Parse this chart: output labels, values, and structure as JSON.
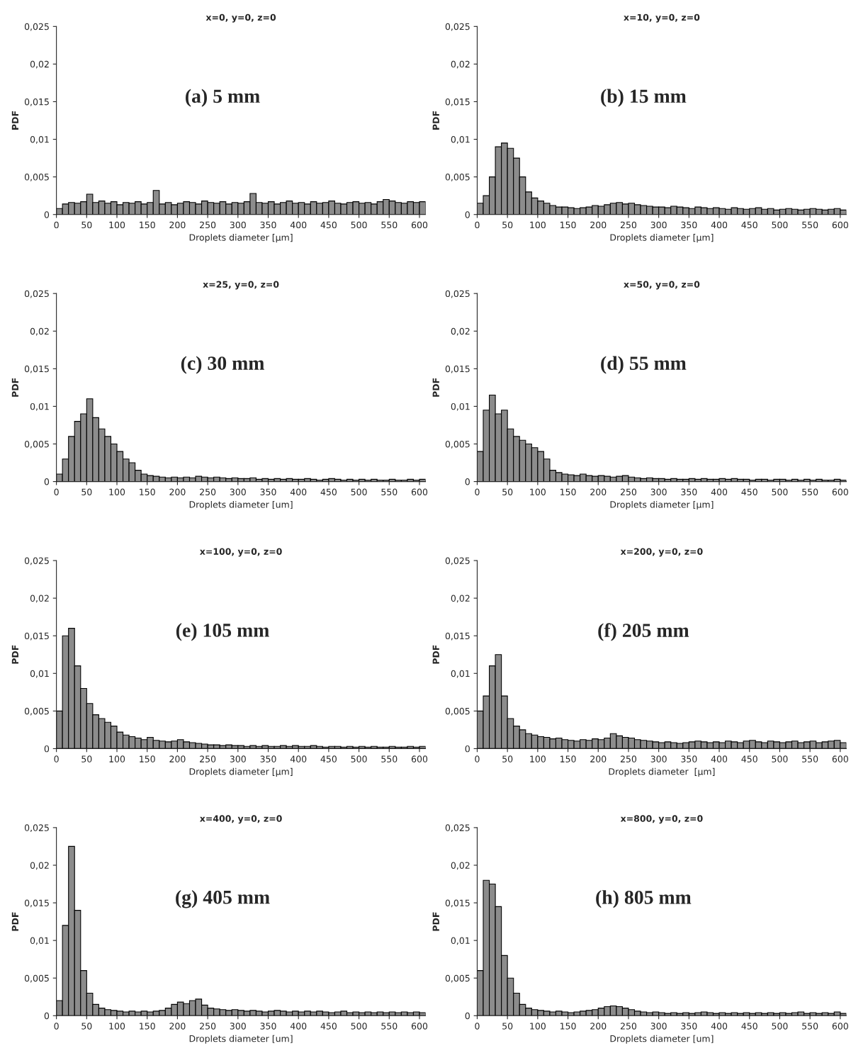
{
  "chart_data": [
    {
      "type": "histogram",
      "title": "x=0, y=0, z=0",
      "xlabel": "Droplets diameter [µm]",
      "ylabel": "PDF",
      "annotations": [
        "(a) 5 mm"
      ],
      "color": "#8c8c8c",
      "xlim": [
        0,
        610
      ],
      "ylim": [
        0,
        0.025
      ],
      "xticks": [
        0,
        50,
        100,
        150,
        200,
        250,
        300,
        350,
        400,
        450,
        500,
        550,
        600
      ],
      "yticks": [
        0,
        {
          "value": 0.005,
          "label": "0,005"
        },
        {
          "value": 0.01,
          "label": "0,01"
        },
        {
          "value": 0.015,
          "label": "0,015"
        },
        {
          "value": 0.02,
          "label": "0,02"
        },
        {
          "value": 0.025,
          "label": "0,025"
        }
      ],
      "bins": [
        0,
        10,
        20,
        30,
        40,
        50,
        60,
        70,
        80,
        90,
        100,
        110,
        120,
        130,
        140,
        150,
        160,
        170,
        180,
        190,
        200,
        210,
        220,
        230,
        240,
        250,
        260,
        270,
        280,
        290,
        300,
        310,
        320,
        330,
        340,
        350,
        360,
        370,
        380,
        390,
        400,
        410,
        420,
        430,
        440,
        450,
        460,
        470,
        480,
        490,
        500,
        510,
        520,
        530,
        540,
        550,
        560,
        570,
        580,
        590,
        600,
        610
      ],
      "values": [
        0.0008,
        0.0014,
        0.0016,
        0.0015,
        0.0017,
        0.0027,
        0.0016,
        0.0018,
        0.0015,
        0.0017,
        0.0013,
        0.0016,
        0.0015,
        0.0017,
        0.0014,
        0.0016,
        0.0032,
        0.0014,
        0.0016,
        0.0013,
        0.0015,
        0.0017,
        0.0016,
        0.0014,
        0.0018,
        0.0016,
        0.0015,
        0.0017,
        0.0014,
        0.0016,
        0.0015,
        0.0017,
        0.0028,
        0.0016,
        0.0015,
        0.0017,
        0.0014,
        0.0016,
        0.0018,
        0.0015,
        0.0016,
        0.0014,
        0.0017,
        0.0015,
        0.0016,
        0.0018,
        0.0015,
        0.0014,
        0.0016,
        0.0017,
        0.0015,
        0.0016,
        0.0014,
        0.0017,
        0.002,
        0.0018,
        0.0016,
        0.0015,
        0.0017,
        0.0016,
        0.0017
      ]
    },
    {
      "type": "histogram",
      "title": "x=10, y=0, z=0",
      "xlabel": "Droplets diameter [µm]",
      "ylabel": "PDF",
      "annotations": [
        "(b) 15 mm"
      ],
      "color": "#8c8c8c",
      "xlim": [
        0,
        610
      ],
      "ylim": [
        0,
        0.025
      ],
      "xticks": [
        0,
        50,
        100,
        150,
        200,
        250,
        300,
        350,
        400,
        450,
        500,
        550,
        600
      ],
      "yticks": [
        0,
        {
          "value": 0.005,
          "label": "0,005"
        },
        {
          "value": 0.01,
          "label": "0,01"
        },
        {
          "value": 0.015,
          "label": "0,015"
        },
        {
          "value": 0.02,
          "label": "0,02"
        },
        {
          "value": 0.025,
          "label": "0,025"
        }
      ],
      "bins": [
        0,
        10,
        20,
        30,
        40,
        50,
        60,
        70,
        80,
        90,
        100,
        110,
        120,
        130,
        140,
        150,
        160,
        170,
        180,
        190,
        200,
        210,
        220,
        230,
        240,
        250,
        260,
        270,
        280,
        290,
        300,
        310,
        320,
        330,
        340,
        350,
        360,
        370,
        380,
        390,
        400,
        410,
        420,
        430,
        440,
        450,
        460,
        470,
        480,
        490,
        500,
        510,
        520,
        530,
        540,
        550,
        560,
        570,
        580,
        590,
        600,
        610
      ],
      "values": [
        0.0015,
        0.0025,
        0.005,
        0.009,
        0.0095,
        0.0088,
        0.0075,
        0.005,
        0.003,
        0.0022,
        0.0018,
        0.0015,
        0.0012,
        0.001,
        0.001,
        0.0009,
        0.0008,
        0.0009,
        0.001,
        0.0012,
        0.0011,
        0.0013,
        0.0015,
        0.0016,
        0.0014,
        0.0015,
        0.0013,
        0.0012,
        0.0011,
        0.001,
        0.001,
        0.0009,
        0.0011,
        0.001,
        0.0009,
        0.0008,
        0.001,
        0.0009,
        0.0008,
        0.0009,
        0.0008,
        0.0007,
        0.0009,
        0.0008,
        0.0007,
        0.0008,
        0.0009,
        0.0007,
        0.0008,
        0.0006,
        0.0007,
        0.0008,
        0.0007,
        0.0006,
        0.0007,
        0.0008,
        0.0007,
        0.0006,
        0.0007,
        0.0008,
        0.0006
      ]
    },
    {
      "type": "histogram",
      "title": "x=25, y=0, z=0",
      "xlabel": "Droplets diameter [um]",
      "ylabel": "PDF",
      "annotations": [
        "(c) 30 mm"
      ],
      "color": "#8c8c8c",
      "xlim": [
        0,
        610
      ],
      "ylim": [
        0,
        0.025
      ],
      "xticks": [
        0,
        50,
        100,
        150,
        200,
        250,
        300,
        350,
        400,
        450,
        500,
        550,
        600
      ],
      "yticks": [
        0,
        {
          "value": 0.005,
          "label": "0,005"
        },
        {
          "value": 0.01,
          "label": "0,01"
        },
        {
          "value": 0.015,
          "label": "0,015"
        },
        {
          "value": 0.02,
          "label": "0,02"
        },
        {
          "value": 0.025,
          "label": "0,025"
        }
      ],
      "bins": [
        0,
        10,
        20,
        30,
        40,
        50,
        60,
        70,
        80,
        90,
        100,
        110,
        120,
        130,
        140,
        150,
        160,
        170,
        180,
        190,
        200,
        210,
        220,
        230,
        240,
        250,
        260,
        270,
        280,
        290,
        300,
        310,
        320,
        330,
        340,
        350,
        360,
        370,
        380,
        390,
        400,
        410,
        420,
        430,
        440,
        450,
        460,
        470,
        480,
        490,
        500,
        510,
        520,
        530,
        540,
        550,
        560,
        570,
        580,
        590,
        600,
        610
      ],
      "values": [
        0.001,
        0.003,
        0.006,
        0.008,
        0.009,
        0.011,
        0.0085,
        0.007,
        0.006,
        0.005,
        0.004,
        0.003,
        0.0025,
        0.0015,
        0.001,
        0.0008,
        0.0007,
        0.0006,
        0.0005,
        0.0006,
        0.0005,
        0.0006,
        0.0005,
        0.0007,
        0.0006,
        0.0005,
        0.0006,
        0.0005,
        0.0004,
        0.0005,
        0.0004,
        0.0004,
        0.0005,
        0.0003,
        0.0004,
        0.0003,
        0.0004,
        0.0003,
        0.0004,
        0.0003,
        0.0003,
        0.0004,
        0.0003,
        0.0002,
        0.0003,
        0.0004,
        0.0003,
        0.0002,
        0.0003,
        0.0002,
        0.0003,
        0.0002,
        0.0003,
        0.0002,
        0.0002,
        0.0003,
        0.0002,
        0.0002,
        0.0003,
        0.0002,
        0.0003
      ]
    },
    {
      "type": "histogram",
      "title": "x=50, y=0, z=0",
      "xlabel": "Droplets diameter [µm]",
      "ylabel": "PDF",
      "annotations": [
        "(d) 55 mm"
      ],
      "color": "#8c8c8c",
      "xlim": [
        0,
        610
      ],
      "ylim": [
        0,
        0.025
      ],
      "xticks": [
        0,
        50,
        100,
        150,
        200,
        250,
        300,
        350,
        400,
        450,
        500,
        550,
        600
      ],
      "yticks": [
        0,
        {
          "value": 0.005,
          "label": "0,005"
        },
        {
          "value": 0.01,
          "label": "0,01"
        },
        {
          "value": 0.015,
          "label": "0,015"
        },
        {
          "value": 0.02,
          "label": "0,02"
        },
        {
          "value": 0.025,
          "label": "0,025"
        }
      ],
      "bins": [
        0,
        10,
        20,
        30,
        40,
        50,
        60,
        70,
        80,
        90,
        100,
        110,
        120,
        130,
        140,
        150,
        160,
        170,
        180,
        190,
        200,
        210,
        220,
        230,
        240,
        250,
        260,
        270,
        280,
        290,
        300,
        310,
        320,
        330,
        340,
        350,
        360,
        370,
        380,
        390,
        400,
        410,
        420,
        430,
        440,
        450,
        460,
        470,
        480,
        490,
        500,
        510,
        520,
        530,
        540,
        550,
        560,
        570,
        580,
        590,
        600,
        610
      ],
      "values": [
        0.004,
        0.0095,
        0.0115,
        0.009,
        0.0095,
        0.007,
        0.006,
        0.0055,
        0.005,
        0.0045,
        0.004,
        0.003,
        0.0015,
        0.0012,
        0.001,
        0.0009,
        0.0008,
        0.001,
        0.0008,
        0.0007,
        0.0008,
        0.0007,
        0.0006,
        0.0007,
        0.0008,
        0.0006,
        0.0005,
        0.0004,
        0.0005,
        0.0004,
        0.0004,
        0.0003,
        0.0004,
        0.0003,
        0.0003,
        0.0004,
        0.0003,
        0.0004,
        0.0003,
        0.0003,
        0.0004,
        0.0003,
        0.0004,
        0.0003,
        0.0003,
        0.0002,
        0.0003,
        0.0003,
        0.0002,
        0.0003,
        0.0003,
        0.0002,
        0.0003,
        0.0002,
        0.0003,
        0.0002,
        0.0003,
        0.0002,
        0.0002,
        0.0003,
        0.0002
      ]
    },
    {
      "type": "histogram",
      "title": "x=100, y=0, z=0",
      "xlabel": "Droplets diameter [µm]",
      "ylabel": "PDF",
      "annotations": [
        "(e) 105 mm"
      ],
      "color": "#8c8c8c",
      "xlim": [
        0,
        610
      ],
      "ylim": [
        0,
        0.025
      ],
      "xticks": [
        0,
        50,
        100,
        150,
        200,
        250,
        300,
        350,
        400,
        450,
        500,
        550,
        600
      ],
      "yticks": [
        0,
        {
          "value": 0.005,
          "label": "0,005"
        },
        {
          "value": 0.01,
          "label": "0,01"
        },
        {
          "value": 0.015,
          "label": "0,015"
        },
        {
          "value": 0.02,
          "label": "0,02"
        },
        {
          "value": 0.025,
          "label": "0,025"
        }
      ],
      "bins": [
        0,
        10,
        20,
        30,
        40,
        50,
        60,
        70,
        80,
        90,
        100,
        110,
        120,
        130,
        140,
        150,
        160,
        170,
        180,
        190,
        200,
        210,
        220,
        230,
        240,
        250,
        260,
        270,
        280,
        290,
        300,
        310,
        320,
        330,
        340,
        350,
        360,
        370,
        380,
        390,
        400,
        410,
        420,
        430,
        440,
        450,
        460,
        470,
        480,
        490,
        500,
        510,
        520,
        530,
        540,
        550,
        560,
        570,
        580,
        590,
        600,
        610
      ],
      "values": [
        0.005,
        0.015,
        0.016,
        0.011,
        0.008,
        0.006,
        0.0045,
        0.004,
        0.0035,
        0.003,
        0.0022,
        0.0018,
        0.0016,
        0.0014,
        0.0012,
        0.0015,
        0.0011,
        0.001,
        0.0009,
        0.001,
        0.0012,
        0.0009,
        0.0008,
        0.0007,
        0.0006,
        0.0005,
        0.0005,
        0.0004,
        0.0005,
        0.0004,
        0.0004,
        0.0003,
        0.0004,
        0.0003,
        0.0004,
        0.0003,
        0.0003,
        0.0004,
        0.0003,
        0.0004,
        0.0003,
        0.0003,
        0.0004,
        0.0003,
        0.0002,
        0.0003,
        0.0003,
        0.0002,
        0.0003,
        0.0002,
        0.0003,
        0.0002,
        0.0003,
        0.0002,
        0.0002,
        0.0003,
        0.0002,
        0.0002,
        0.0003,
        0.0002,
        0.0003
      ]
    },
    {
      "type": "histogram",
      "title": "x=200, y=0, z=0",
      "xlabel": "Droplets diameter  [µm]",
      "ylabel": "PDF",
      "annotations": [
        "(f) 205 mm"
      ],
      "color": "#8c8c8c",
      "xlim": [
        0,
        610
      ],
      "ylim": [
        0,
        0.025
      ],
      "xticks": [
        0,
        50,
        100,
        150,
        200,
        250,
        300,
        350,
        400,
        450,
        500,
        550,
        600
      ],
      "yticks": [
        0,
        {
          "value": 0.005,
          "label": "0,005"
        },
        {
          "value": 0.01,
          "label": "0,01"
        },
        {
          "value": 0.015,
          "label": "0,015"
        },
        {
          "value": 0.02,
          "label": "0,02"
        },
        {
          "value": 0.025,
          "label": "0,025"
        }
      ],
      "bins": [
        0,
        10,
        20,
        30,
        40,
        50,
        60,
        70,
        80,
        90,
        100,
        110,
        120,
        130,
        140,
        150,
        160,
        170,
        180,
        190,
        200,
        210,
        220,
        230,
        240,
        250,
        260,
        270,
        280,
        290,
        300,
        310,
        320,
        330,
        340,
        350,
        360,
        370,
        380,
        390,
        400,
        410,
        420,
        430,
        440,
        450,
        460,
        470,
        480,
        490,
        500,
        510,
        520,
        530,
        540,
        550,
        560,
        570,
        580,
        590,
        600,
        610
      ],
      "values": [
        0.005,
        0.007,
        0.011,
        0.0125,
        0.007,
        0.004,
        0.003,
        0.0025,
        0.002,
        0.0018,
        0.0016,
        0.0015,
        0.0013,
        0.0014,
        0.0012,
        0.0011,
        0.001,
        0.0012,
        0.0011,
        0.0013,
        0.0012,
        0.0014,
        0.002,
        0.0017,
        0.0015,
        0.0014,
        0.0012,
        0.0011,
        0.001,
        0.0009,
        0.0008,
        0.0009,
        0.0008,
        0.0007,
        0.0008,
        0.0009,
        0.001,
        0.0009,
        0.0008,
        0.0009,
        0.0008,
        0.001,
        0.0009,
        0.0008,
        0.001,
        0.0011,
        0.0009,
        0.0008,
        0.001,
        0.0009,
        0.0008,
        0.0009,
        0.001,
        0.0008,
        0.0009,
        0.001,
        0.0008,
        0.0009,
        0.001,
        0.0011,
        0.0008
      ]
    },
    {
      "type": "histogram",
      "title": "x=400, y=0, z=0",
      "xlabel": "Droplets diameter [um]",
      "ylabel": "PDF",
      "annotations": [
        "(g) 405 mm"
      ],
      "color": "#8c8c8c",
      "xlim": [
        0,
        610
      ],
      "ylim": [
        0,
        0.025
      ],
      "xticks": [
        0,
        50,
        100,
        150,
        200,
        250,
        300,
        350,
        400,
        450,
        500,
        550,
        600
      ],
      "yticks": [
        0,
        {
          "value": 0.005,
          "label": "0,005"
        },
        {
          "value": 0.01,
          "label": "0,01"
        },
        {
          "value": 0.015,
          "label": "0,015"
        },
        {
          "value": 0.02,
          "label": "0,02"
        },
        {
          "value": 0.025,
          "label": "0,025"
        }
      ],
      "bins": [
        0,
        10,
        20,
        30,
        40,
        50,
        60,
        70,
        80,
        90,
        100,
        110,
        120,
        130,
        140,
        150,
        160,
        170,
        180,
        190,
        200,
        210,
        220,
        230,
        240,
        250,
        260,
        270,
        280,
        290,
        300,
        310,
        320,
        330,
        340,
        350,
        360,
        370,
        380,
        390,
        400,
        410,
        420,
        430,
        440,
        450,
        460,
        470,
        480,
        490,
        500,
        510,
        520,
        530,
        540,
        550,
        560,
        570,
        580,
        590,
        600,
        610
      ],
      "values": [
        0.002,
        0.012,
        0.0225,
        0.014,
        0.006,
        0.003,
        0.0015,
        0.001,
        0.0008,
        0.0007,
        0.0006,
        0.0005,
        0.0006,
        0.0005,
        0.0006,
        0.0005,
        0.0006,
        0.0007,
        0.001,
        0.0015,
        0.0018,
        0.0016,
        0.002,
        0.0022,
        0.0014,
        0.001,
        0.0009,
        0.0008,
        0.0007,
        0.0008,
        0.0007,
        0.0006,
        0.0007,
        0.0006,
        0.0005,
        0.0006,
        0.0007,
        0.0006,
        0.0005,
        0.0006,
        0.0005,
        0.0006,
        0.0005,
        0.0006,
        0.0005,
        0.0004,
        0.0005,
        0.0006,
        0.0004,
        0.0005,
        0.0004,
        0.0005,
        0.0004,
        0.0005,
        0.0004,
        0.0005,
        0.0004,
        0.0005,
        0.0004,
        0.0005,
        0.0004
      ]
    },
    {
      "type": "histogram",
      "title": "x=800, y=0, z=0",
      "xlabel": "Droplets diameter [um]",
      "ylabel": "PDF",
      "annotations": [
        "(h) 805 mm"
      ],
      "color": "#8c8c8c",
      "xlim": [
        0,
        610
      ],
      "ylim": [
        0,
        0.025
      ],
      "xticks": [
        0,
        50,
        100,
        150,
        200,
        250,
        300,
        350,
        400,
        450,
        500,
        550,
        600
      ],
      "yticks": [
        0,
        {
          "value": 0.005,
          "label": "0,005"
        },
        {
          "value": 0.01,
          "label": "0,01"
        },
        {
          "value": 0.015,
          "label": "0,015"
        },
        {
          "value": 0.02,
          "label": "0,02"
        },
        {
          "value": 0.025,
          "label": "0,025"
        }
      ],
      "bins": [
        0,
        10,
        20,
        30,
        40,
        50,
        60,
        70,
        80,
        90,
        100,
        110,
        120,
        130,
        140,
        150,
        160,
        170,
        180,
        190,
        200,
        210,
        220,
        230,
        240,
        250,
        260,
        270,
        280,
        290,
        300,
        310,
        320,
        330,
        340,
        350,
        360,
        370,
        380,
        390,
        400,
        410,
        420,
        430,
        440,
        450,
        460,
        470,
        480,
        490,
        500,
        510,
        520,
        530,
        540,
        550,
        560,
        570,
        580,
        590,
        600,
        610
      ],
      "values": [
        0.006,
        0.018,
        0.0175,
        0.0145,
        0.008,
        0.005,
        0.003,
        0.0015,
        0.001,
        0.0008,
        0.0007,
        0.0006,
        0.0005,
        0.0006,
        0.0005,
        0.0004,
        0.0005,
        0.0006,
        0.0007,
        0.0008,
        0.001,
        0.0012,
        0.0013,
        0.0012,
        0.001,
        0.0008,
        0.0006,
        0.0005,
        0.0004,
        0.0005,
        0.0004,
        0.0003,
        0.0004,
        0.0003,
        0.0004,
        0.0003,
        0.0004,
        0.0005,
        0.0004,
        0.0003,
        0.0004,
        0.0003,
        0.0004,
        0.0003,
        0.0004,
        0.0003,
        0.0004,
        0.0003,
        0.0004,
        0.0003,
        0.0004,
        0.0003,
        0.0004,
        0.0005,
        0.0003,
        0.0004,
        0.0003,
        0.0004,
        0.0003,
        0.0005,
        0.0003
      ]
    }
  ]
}
